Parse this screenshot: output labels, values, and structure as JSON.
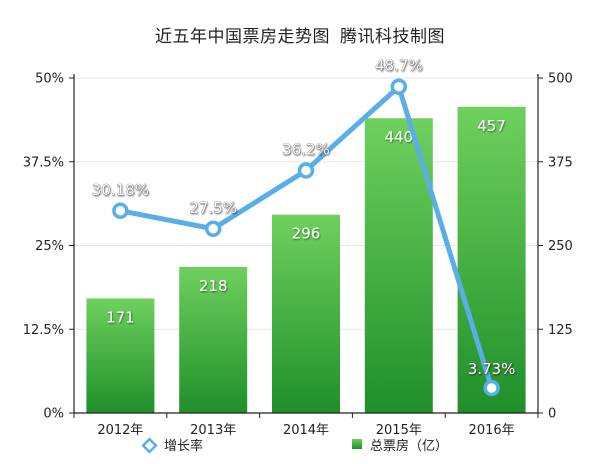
{
  "title_main": "近五年中国票房走势图",
  "title_source": "腾讯科技制图",
  "legend": {
    "growth": "增长率",
    "box_office": "总票房（亿）"
  },
  "colors": {
    "bar_light": "#6fd05e",
    "bar_dark": "#1f8f2a",
    "line": "#5aaee8",
    "marker_fill": "#ffffff",
    "axis": "#222222",
    "grid": "#e6e6e6"
  },
  "chart_data": {
    "type": "bar",
    "title": "近五年中国票房走势图 腾讯科技制图",
    "categories": [
      "2012年",
      "2013年",
      "2014年",
      "2015年",
      "2016年"
    ],
    "series": [
      {
        "name": "总票房（亿）",
        "type": "bar",
        "axis": "right",
        "values": [
          171,
          218,
          296,
          440,
          457
        ],
        "labels": [
          "171",
          "218",
          "296",
          "440",
          "457"
        ]
      },
      {
        "name": "增长率",
        "type": "line",
        "axis": "left",
        "values": [
          30.18,
          27.5,
          36.2,
          48.7,
          3.73
        ],
        "labels": [
          "30.18%",
          "27.5%",
          "36.2%",
          "48.7%",
          "3.73%"
        ]
      }
    ],
    "y_left": {
      "min": 0,
      "max": 50,
      "ticks": [
        0,
        12.5,
        25,
        37.5,
        50
      ],
      "tick_labels": [
        "0%",
        "12.5%",
        "25%",
        "37.5%",
        "50%"
      ]
    },
    "y_right": {
      "min": 0,
      "max": 500,
      "ticks": [
        0,
        125,
        250,
        375,
        500
      ],
      "tick_labels": [
        "0",
        "125",
        "250",
        "375",
        "500"
      ]
    },
    "grid": true,
    "legend_position": "bottom"
  }
}
